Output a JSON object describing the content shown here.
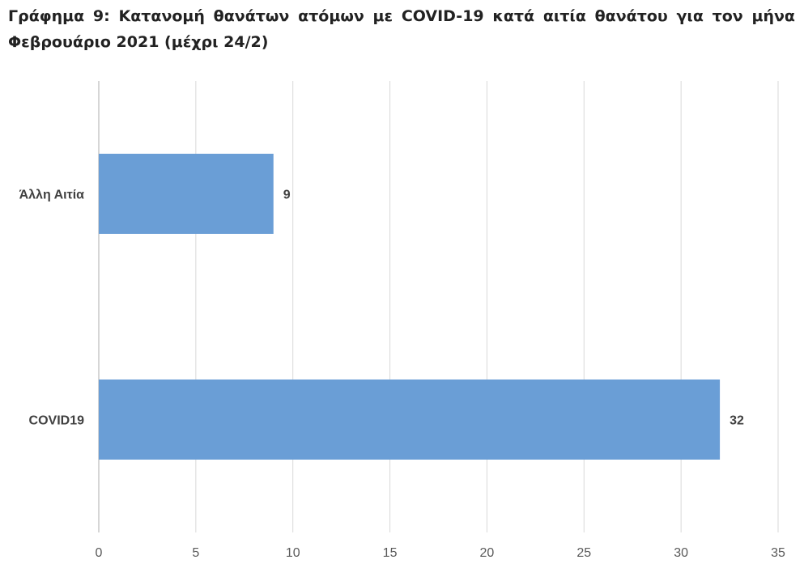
{
  "chart_data": {
    "type": "bar",
    "orientation": "horizontal",
    "title": "Γράφημα 9: Κατανομή θανάτων ατόμων με COVID-19 κατά αιτία θανάτου για τον μήνα Φεβρουάριο 2021 (μέχρι 24/2)",
    "categories": [
      "Άλλη Αιτία",
      "COVID19"
    ],
    "values": [
      9,
      32
    ],
    "xlim": [
      0,
      35
    ],
    "ticks": [
      0,
      5,
      10,
      15,
      20,
      25,
      30,
      35
    ],
    "xlabel": "",
    "ylabel": "",
    "grid": true,
    "legend": "none",
    "bar_color": "#6a9ed6",
    "grid_color": "#d9d9d9"
  }
}
